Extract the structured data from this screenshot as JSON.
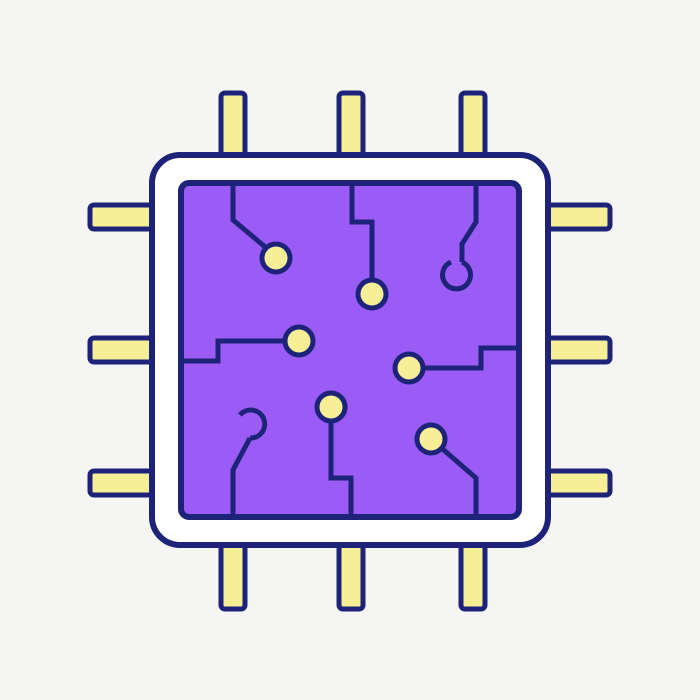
{
  "icon": {
    "name": "cpu-chip-icon",
    "colors": {
      "background": "#f5f5f3",
      "outline": "#1e237a",
      "pin_fill": "#f7ef96",
      "frame_fill": "#ffffff",
      "die_fill": "#9b5cf5",
      "node_fill": "#f7ef96"
    },
    "pins_per_side": 3
  }
}
